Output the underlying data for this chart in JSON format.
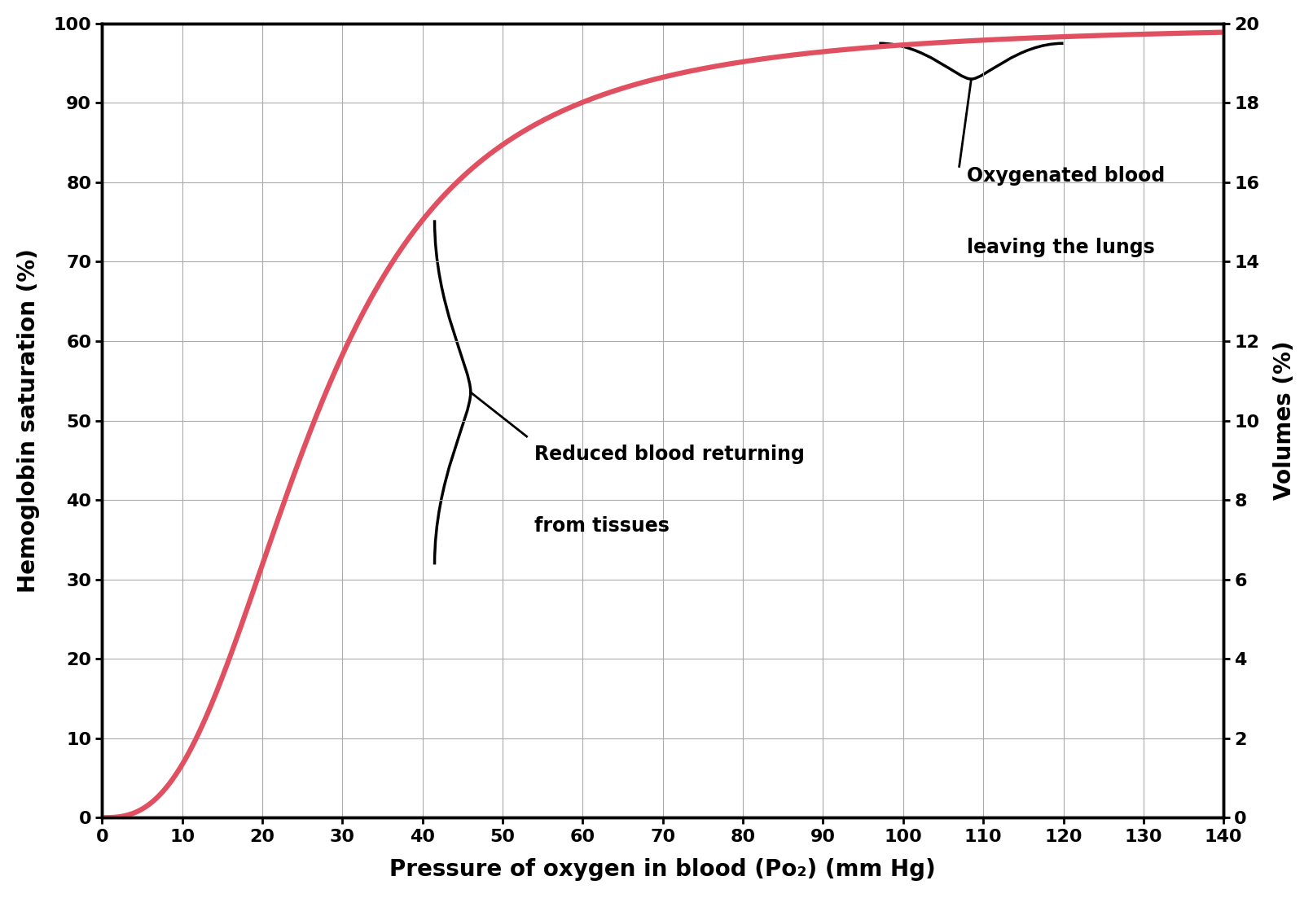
{
  "xlabel": "Pressure of oxygen in blood (Po₂) (mm Hg)",
  "ylabel_left": "Hemoglobin saturation (%)",
  "ylabel_right": "Volumes (%)",
  "xlim": [
    0,
    140
  ],
  "ylim_left": [
    0,
    100
  ],
  "ylim_right": [
    0,
    20
  ],
  "xticks": [
    0,
    10,
    20,
    30,
    40,
    50,
    60,
    70,
    80,
    90,
    100,
    110,
    120,
    130,
    140
  ],
  "yticks_left": [
    0,
    10,
    20,
    30,
    40,
    50,
    60,
    70,
    80,
    90,
    100
  ],
  "yticks_right": [
    0,
    2,
    4,
    6,
    8,
    10,
    12,
    14,
    16,
    18,
    20
  ],
  "curve_color": "#e05060",
  "curve_linewidth": 4.5,
  "grid_color": "#aaaaaa",
  "annotation1_text_line1": "Reduced blood returning",
  "annotation1_text_line2": "from tissues",
  "annotation2_text_line1": "Oxygenated blood",
  "annotation2_text_line2": "leaving the lungs",
  "background_color": "#ffffff",
  "hill_n": 2.7,
  "hill_p50": 26.5
}
